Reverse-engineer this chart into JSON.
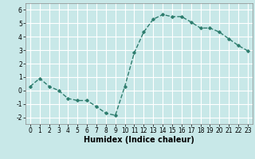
{
  "x": [
    0,
    1,
    2,
    3,
    4,
    5,
    6,
    7,
    8,
    9,
    10,
    11,
    12,
    13,
    14,
    15,
    16,
    17,
    18,
    19,
    20,
    21,
    22,
    23
  ],
  "y": [
    0.3,
    0.9,
    0.3,
    0.0,
    -0.6,
    -0.75,
    -0.75,
    -1.2,
    -1.7,
    -1.85,
    0.3,
    2.8,
    4.35,
    5.3,
    5.65,
    5.5,
    5.5,
    5.1,
    4.65,
    4.65,
    4.35,
    3.85,
    3.35,
    2.95
  ],
  "line_color": "#2e7d6e",
  "marker": "D",
  "marker_size": 1.8,
  "bg_color": "#c8e8e8",
  "grid_color": "#ffffff",
  "xlabel": "Humidex (Indice chaleur)",
  "xlim": [
    -0.5,
    23.5
  ],
  "ylim": [
    -2.5,
    6.5
  ],
  "yticks": [
    -2,
    -1,
    0,
    1,
    2,
    3,
    4,
    5,
    6
  ],
  "xticks": [
    0,
    1,
    2,
    3,
    4,
    5,
    6,
    7,
    8,
    9,
    10,
    11,
    12,
    13,
    14,
    15,
    16,
    17,
    18,
    19,
    20,
    21,
    22,
    23
  ],
  "tick_label_fontsize": 5.5,
  "xlabel_fontsize": 7.0,
  "line_width": 1.0
}
